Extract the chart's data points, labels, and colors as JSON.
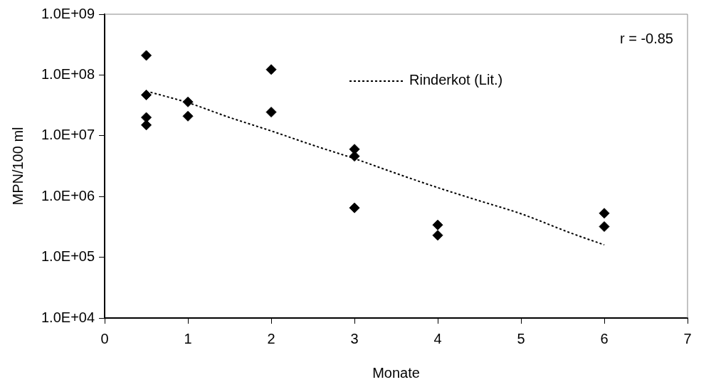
{
  "chart_data": {
    "type": "scatter",
    "xlabel": "Monate",
    "ylabel": "MPN/100 ml",
    "log": "y",
    "marker": "diamond",
    "grid": false,
    "legend": "top",
    "annotations": [
      "r = -0.85"
    ],
    "xlim": [
      0,
      7
    ],
    "xticks": [
      0,
      1,
      2,
      3,
      4,
      5,
      6,
      7
    ],
    "ylim": [
      10000,
      1000000000
    ],
    "yticks": [
      {
        "value": 10000,
        "label": "1.0E+04"
      },
      {
        "value": 100000,
        "label": "1.0E+05"
      },
      {
        "value": 1000000,
        "label": "1.0E+06"
      },
      {
        "value": 10000000,
        "label": "1.0E+07"
      },
      {
        "value": 100000000,
        "label": "1.0E+08"
      },
      {
        "value": 1000000000,
        "label": "1.0E+09"
      }
    ],
    "series": [
      {
        "color": "#000000",
        "x": [
          0.5,
          0.5,
          0.5,
          0.5,
          1,
          1,
          2,
          2,
          3,
          3,
          3,
          4,
          4,
          6,
          6
        ],
        "values": [
          210000000,
          47000000,
          20000000,
          15000000,
          36000000,
          21000000,
          123000000,
          24500000,
          6000000,
          4600000,
          650000,
          340000,
          230000,
          530000,
          320000
        ]
      },
      {
        "type": "line",
        "name": "Rinderkot (Lit.)",
        "color": "#000000",
        "line_style": "dotted",
        "marker": "none",
        "x": [
          0.55,
          1,
          1.5,
          2,
          2.5,
          3,
          3.5,
          4,
          4.5,
          5,
          5.6,
          6
        ],
        "values": [
          52000000,
          35000000,
          20000000,
          12000000,
          7000000,
          4200000,
          2400000,
          1400000,
          850000,
          520000,
          250000,
          160000
        ]
      }
    ]
  }
}
